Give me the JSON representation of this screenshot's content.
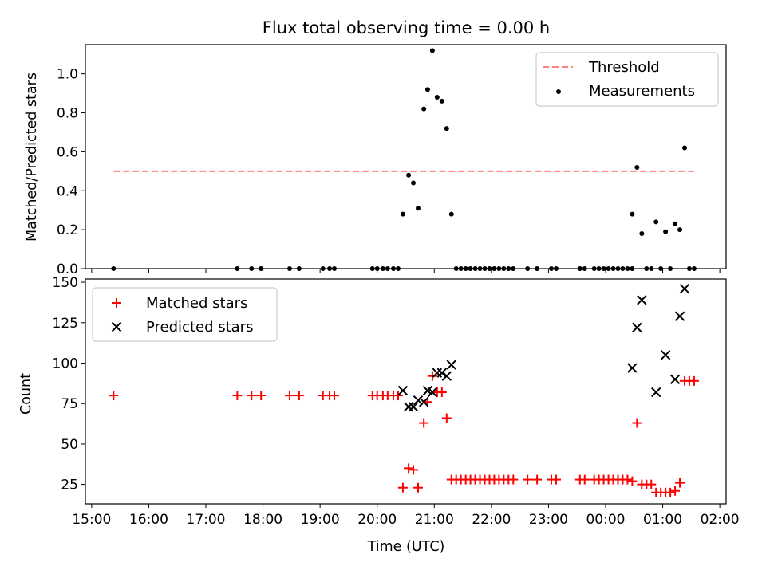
{
  "chart_data": [
    {
      "type": "scatter",
      "title": "Flux total observing time = 0.00 h",
      "xlabel": "",
      "ylabel": "Matched/Predicted stars",
      "xlim": [
        "15:00",
        "02:00"
      ],
      "ylim": [
        0,
        1.15
      ],
      "yticks": [
        0.0,
        0.2,
        0.4,
        0.6,
        0.8,
        1.0
      ],
      "ytick_labels": [
        "0.0",
        "0.2",
        "0.4",
        "0.6",
        "0.8",
        "1.0"
      ],
      "legend": {
        "placement": "upper right",
        "entries": [
          "Threshold",
          "Measurements"
        ]
      },
      "threshold": {
        "name": "Threshold",
        "x": [
          "15:23",
          "01:33"
        ],
        "y": 0.5,
        "color": "#ff7f7f",
        "style": "dashed"
      },
      "series": [
        {
          "name": "Measurements",
          "color": "#000000",
          "marker": "dot",
          "points": [
            [
              "15:23",
              0.0
            ],
            [
              "17:33",
              0.0
            ],
            [
              "17:48",
              0.0
            ],
            [
              "17:58",
              0.0
            ],
            [
              "18:28",
              0.0
            ],
            [
              "18:38",
              0.0
            ],
            [
              "19:03",
              0.0
            ],
            [
              "19:10",
              0.0
            ],
            [
              "19:15",
              0.0
            ],
            [
              "19:55",
              0.0
            ],
            [
              "20:00",
              0.0
            ],
            [
              "20:06",
              0.0
            ],
            [
              "20:11",
              0.0
            ],
            [
              "20:17",
              0.0
            ],
            [
              "20:22",
              0.0
            ],
            [
              "20:27",
              0.28
            ],
            [
              "20:33",
              0.48
            ],
            [
              "20:38",
              0.44
            ],
            [
              "20:43",
              0.31
            ],
            [
              "20:49",
              0.82
            ],
            [
              "20:53",
              0.92
            ],
            [
              "20:58",
              1.12
            ],
            [
              "21:03",
              0.88
            ],
            [
              "21:08",
              0.86
            ],
            [
              "21:13",
              0.72
            ],
            [
              "21:18",
              0.28
            ],
            [
              "21:23",
              0.0
            ],
            [
              "21:28",
              0.0
            ],
            [
              "21:33",
              0.0
            ],
            [
              "21:38",
              0.0
            ],
            [
              "21:43",
              0.0
            ],
            [
              "21:48",
              0.0
            ],
            [
              "21:53",
              0.0
            ],
            [
              "21:58",
              0.0
            ],
            [
              "22:03",
              0.0
            ],
            [
              "22:08",
              0.0
            ],
            [
              "22:13",
              0.0
            ],
            [
              "22:18",
              0.0
            ],
            [
              "22:23",
              0.0
            ],
            [
              "22:38",
              0.0
            ],
            [
              "22:48",
              0.0
            ],
            [
              "23:03",
              0.0
            ],
            [
              "23:08",
              0.0
            ],
            [
              "23:33",
              0.0
            ],
            [
              "23:38",
              0.0
            ],
            [
              "23:48",
              0.0
            ],
            [
              "23:53",
              0.0
            ],
            [
              "23:58",
              0.0
            ],
            [
              "00:03",
              0.0
            ],
            [
              "00:08",
              0.0
            ],
            [
              "00:13",
              0.0
            ],
            [
              "00:18",
              0.0
            ],
            [
              "00:23",
              0.0
            ],
            [
              "00:28",
              0.0
            ],
            [
              "00:28",
              0.28
            ],
            [
              "00:33",
              0.52
            ],
            [
              "00:38",
              0.18
            ],
            [
              "00:43",
              0.0
            ],
            [
              "00:48",
              0.0
            ],
            [
              "00:53",
              0.24
            ],
            [
              "00:58",
              0.0
            ],
            [
              "01:03",
              0.19
            ],
            [
              "01:08",
              0.0
            ],
            [
              "01:13",
              0.23
            ],
            [
              "01:18",
              0.2
            ],
            [
              "01:23",
              0.62
            ],
            [
              "01:28",
              0.0
            ],
            [
              "01:33",
              0.0
            ]
          ]
        }
      ]
    },
    {
      "type": "scatter",
      "title": "",
      "xlabel": "Time (UTC)",
      "ylabel": "Count",
      "xlim": [
        "15:00",
        "02:00"
      ],
      "xticks": [
        "15:00",
        "16:00",
        "17:00",
        "18:00",
        "19:00",
        "20:00",
        "21:00",
        "22:00",
        "23:00",
        "00:00",
        "01:00",
        "02:00"
      ],
      "ylim": [
        13,
        152
      ],
      "yticks": [
        25,
        50,
        75,
        100,
        125,
        150
      ],
      "ytick_labels": [
        "25",
        "50",
        "75",
        "100",
        "125",
        "150"
      ],
      "legend": {
        "placement": "upper left",
        "entries": [
          "Matched stars",
          "Predicted stars"
        ]
      },
      "series": [
        {
          "name": "Matched stars",
          "color": "#ff0000",
          "marker": "plus",
          "points": [
            [
              "15:23",
              80
            ],
            [
              "17:33",
              80
            ],
            [
              "17:48",
              80
            ],
            [
              "17:58",
              80
            ],
            [
              "18:28",
              80
            ],
            [
              "18:38",
              80
            ],
            [
              "19:03",
              80
            ],
            [
              "19:10",
              80
            ],
            [
              "19:15",
              80
            ],
            [
              "19:55",
              80
            ],
            [
              "20:00",
              80
            ],
            [
              "20:06",
              80
            ],
            [
              "20:11",
              80
            ],
            [
              "20:17",
              80
            ],
            [
              "20:22",
              80
            ],
            [
              "20:27",
              23
            ],
            [
              "20:33",
              35
            ],
            [
              "20:38",
              34
            ],
            [
              "20:43",
              23
            ],
            [
              "20:49",
              63
            ],
            [
              "20:53",
              76
            ],
            [
              "20:58",
              92
            ],
            [
              "21:03",
              82
            ],
            [
              "21:08",
              82
            ],
            [
              "21:13",
              66
            ],
            [
              "21:18",
              28
            ],
            [
              "21:23",
              28
            ],
            [
              "21:28",
              28
            ],
            [
              "21:33",
              28
            ],
            [
              "21:38",
              28
            ],
            [
              "21:43",
              28
            ],
            [
              "21:48",
              28
            ],
            [
              "21:53",
              28
            ],
            [
              "21:58",
              28
            ],
            [
              "22:03",
              28
            ],
            [
              "22:08",
              28
            ],
            [
              "22:13",
              28
            ],
            [
              "22:18",
              28
            ],
            [
              "22:23",
              28
            ],
            [
              "22:38",
              28
            ],
            [
              "22:48",
              28
            ],
            [
              "23:03",
              28
            ],
            [
              "23:08",
              28
            ],
            [
              "23:33",
              28
            ],
            [
              "23:38",
              28
            ],
            [
              "23:48",
              28
            ],
            [
              "23:53",
              28
            ],
            [
              "23:58",
              28
            ],
            [
              "00:03",
              28
            ],
            [
              "00:08",
              28
            ],
            [
              "00:13",
              28
            ],
            [
              "00:18",
              28
            ],
            [
              "00:23",
              28
            ],
            [
              "00:28",
              27
            ],
            [
              "00:33",
              63
            ],
            [
              "00:38",
              25
            ],
            [
              "00:43",
              25
            ],
            [
              "00:48",
              25
            ],
            [
              "00:53",
              20
            ],
            [
              "00:58",
              20
            ],
            [
              "01:03",
              20
            ],
            [
              "01:08",
              20
            ],
            [
              "01:13",
              21
            ],
            [
              "01:18",
              26
            ],
            [
              "01:23",
              89
            ],
            [
              "01:28",
              89
            ],
            [
              "01:33",
              89
            ]
          ]
        },
        {
          "name": "Predicted stars",
          "color": "#000000",
          "marker": "x",
          "points": [
            [
              "20:27",
              83
            ],
            [
              "20:33",
              73
            ],
            [
              "20:38",
              73
            ],
            [
              "20:43",
              77
            ],
            [
              "20:49",
              76
            ],
            [
              "20:53",
              83
            ],
            [
              "20:58",
              82
            ],
            [
              "21:03",
              94
            ],
            [
              "21:08",
              94
            ],
            [
              "21:13",
              92
            ],
            [
              "21:18",
              99
            ],
            [
              "00:28",
              97
            ],
            [
              "00:33",
              122
            ],
            [
              "00:38",
              139
            ],
            [
              "01:03",
              105
            ],
            [
              "00:53",
              82
            ],
            [
              "01:13",
              90
            ],
            [
              "01:18",
              129
            ],
            [
              "01:23",
              146
            ]
          ]
        }
      ]
    }
  ]
}
